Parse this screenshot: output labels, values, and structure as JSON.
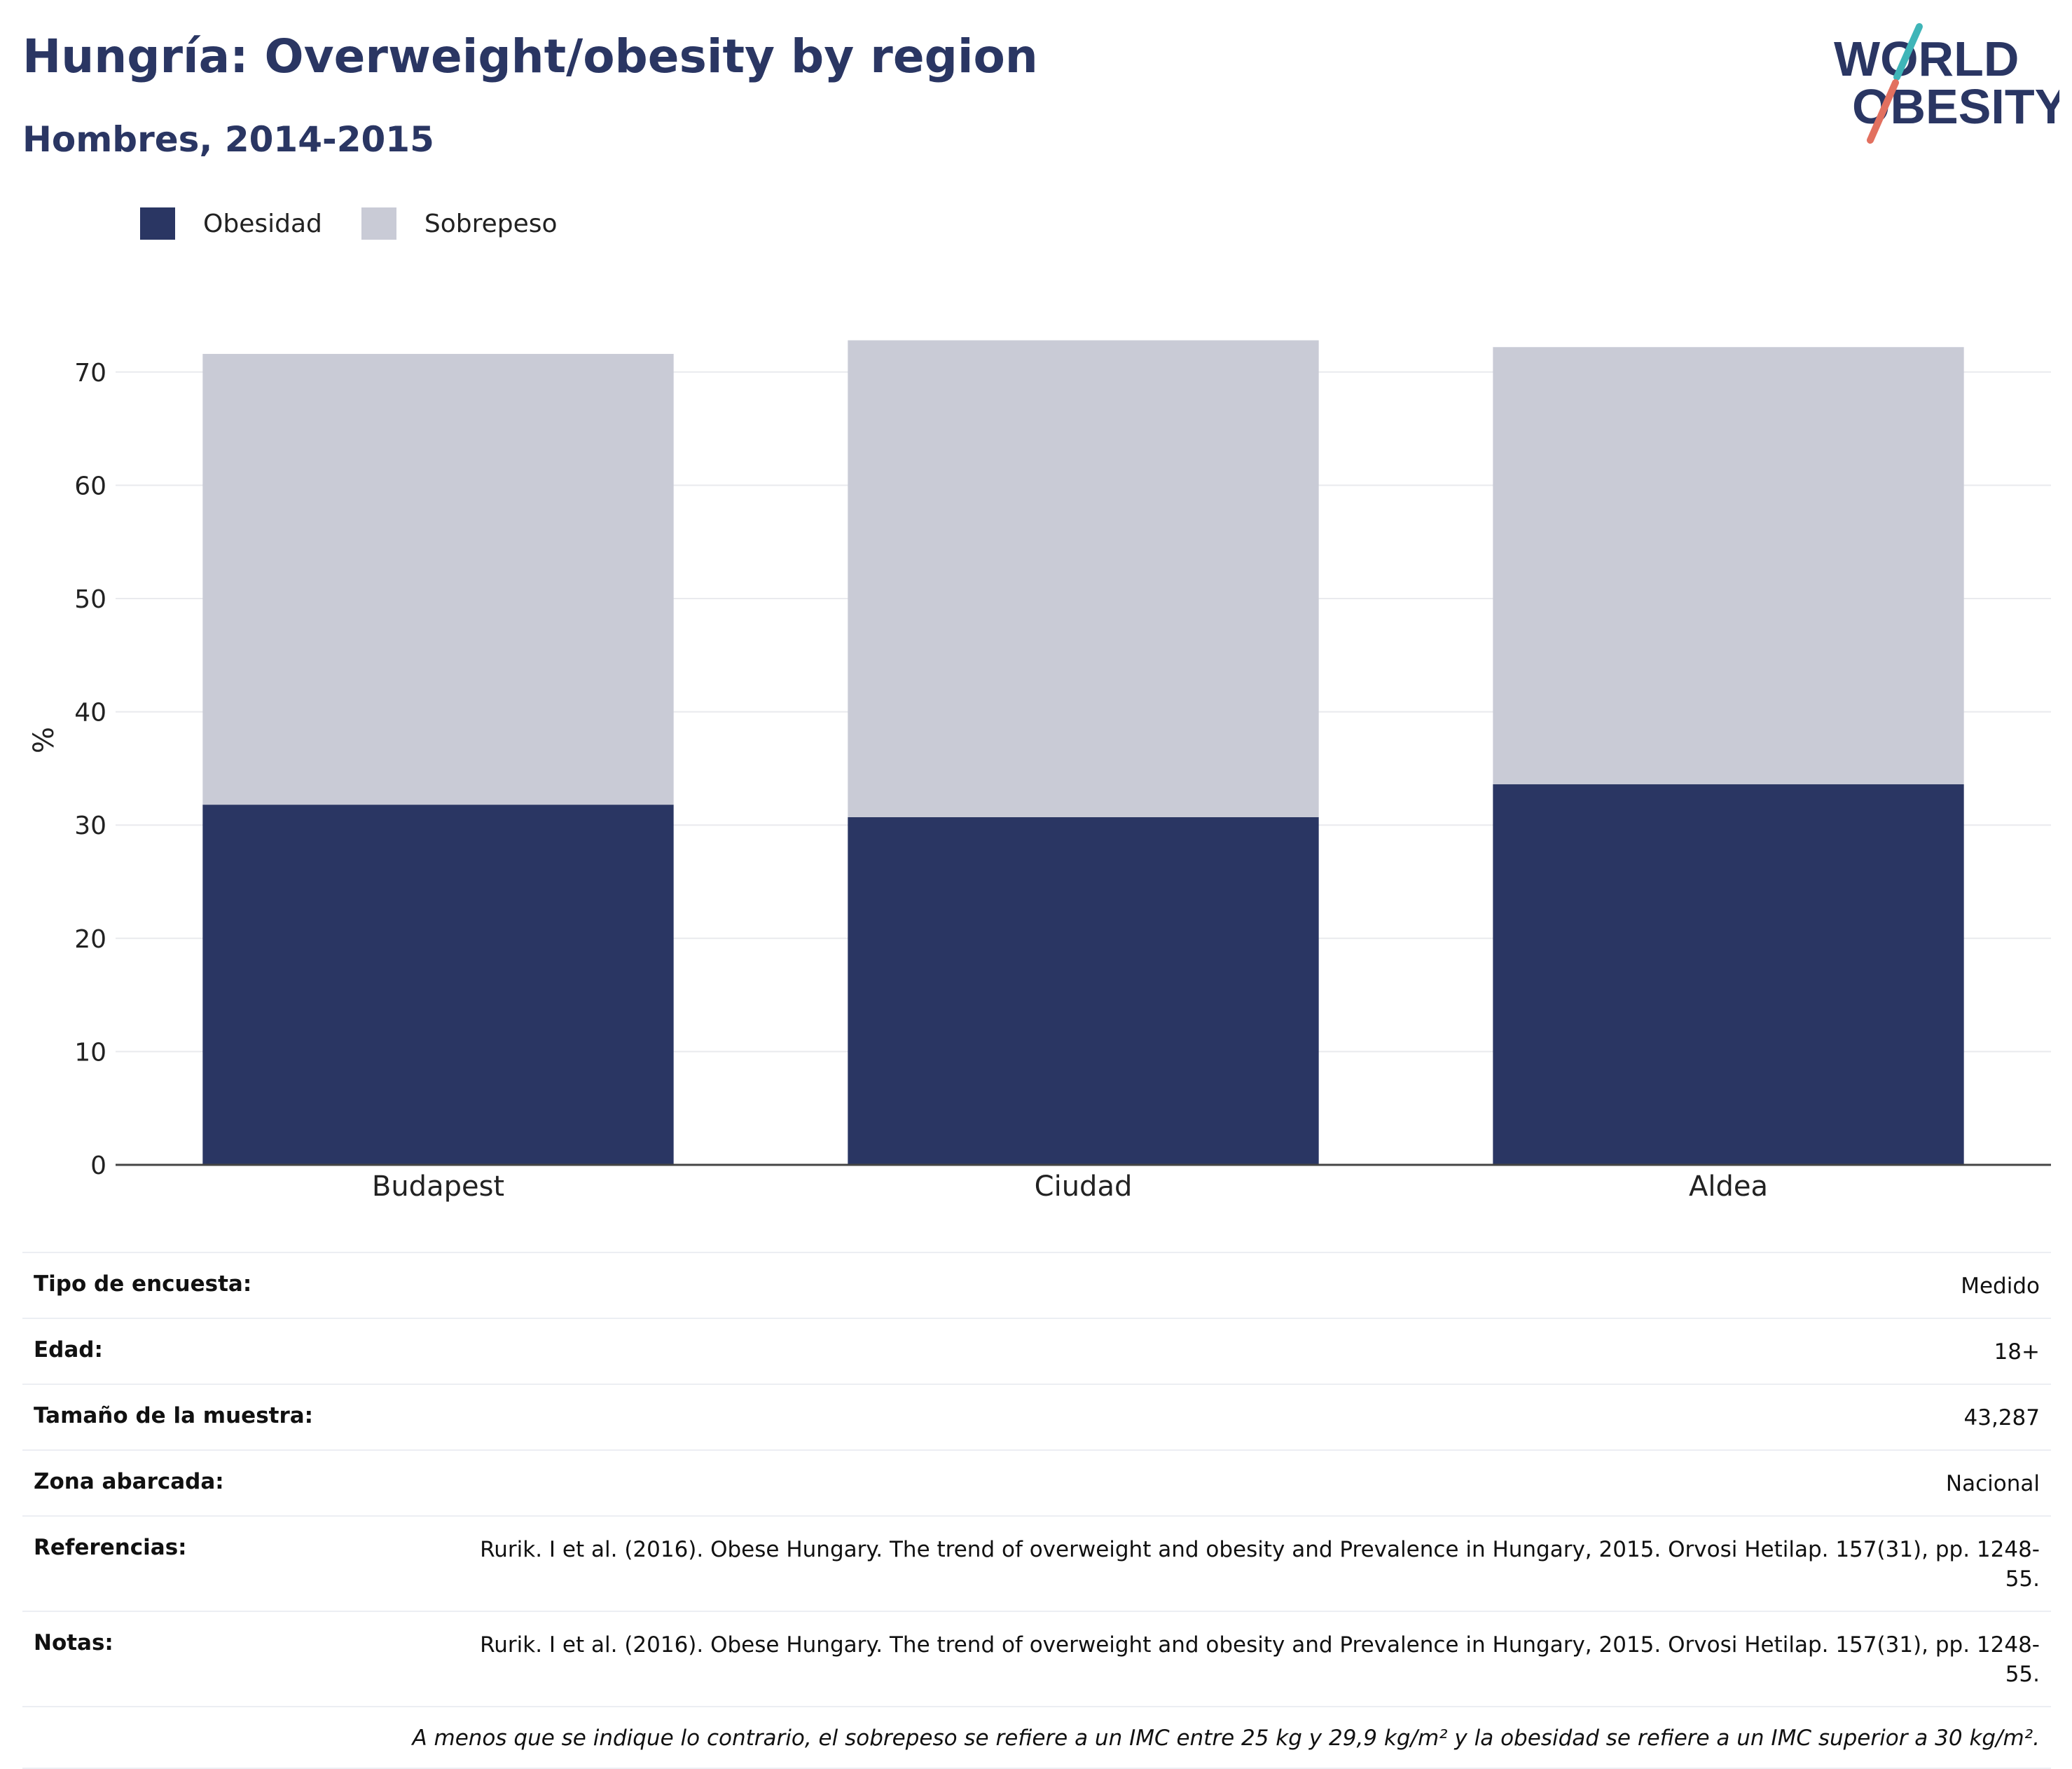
{
  "header": {
    "title": "Hungría: Overweight/obesity by region",
    "subtitle": "Hombres, 2014-2015",
    "logo_line1": "WORLD",
    "logo_line2": "OBESITY"
  },
  "legend": {
    "items": [
      {
        "label": "Obesidad",
        "color": "#2a3663"
      },
      {
        "label": "Sobrepeso",
        "color": "#c9cbd6"
      }
    ]
  },
  "chart_data": {
    "type": "bar",
    "stacked": true,
    "categories": [
      "Budapest",
      "Ciudad",
      "Aldea"
    ],
    "series": [
      {
        "name": "Obesidad",
        "color": "#2a3663",
        "values": [
          31.8,
          30.7,
          33.6
        ]
      },
      {
        "name": "Sobrepeso",
        "color": "#c9cbd6",
        "values": [
          39.8,
          42.1,
          38.6
        ]
      }
    ],
    "ylabel": "%",
    "ylim": [
      0,
      75
    ],
    "yticks": [
      0,
      10,
      20,
      30,
      40,
      50,
      60,
      70
    ],
    "grid": true,
    "legend_position": "top-left"
  },
  "meta": {
    "rows": [
      {
        "label": "Tipo de encuesta:",
        "value": "Medido"
      },
      {
        "label": "Edad:",
        "value": "18+"
      },
      {
        "label": "Tamaño de la muestra:",
        "value": "43,287"
      },
      {
        "label": "Zona abarcada:",
        "value": "Nacional"
      },
      {
        "label": "Referencias:",
        "value": "Rurik. I et al. (2016). Obese Hungary. The trend of overweight and obesity and Prevalence in Hungary, 2015. Orvosi Hetilap. 157(31), pp. 1248-55."
      },
      {
        "label": "Notas:",
        "value": "Rurik. I et al. (2016). Obese Hungary. The trend of overweight and obesity and Prevalence in Hungary, 2015. Orvosi Hetilap. 157(31), pp. 1248-55."
      }
    ],
    "footnote": "A menos que se indique lo contrario, el sobrepeso se refiere a un IMC entre 25 kg y 29,9 kg/m² y la obesidad se refiere a un IMC superior a 30 kg/m²."
  }
}
